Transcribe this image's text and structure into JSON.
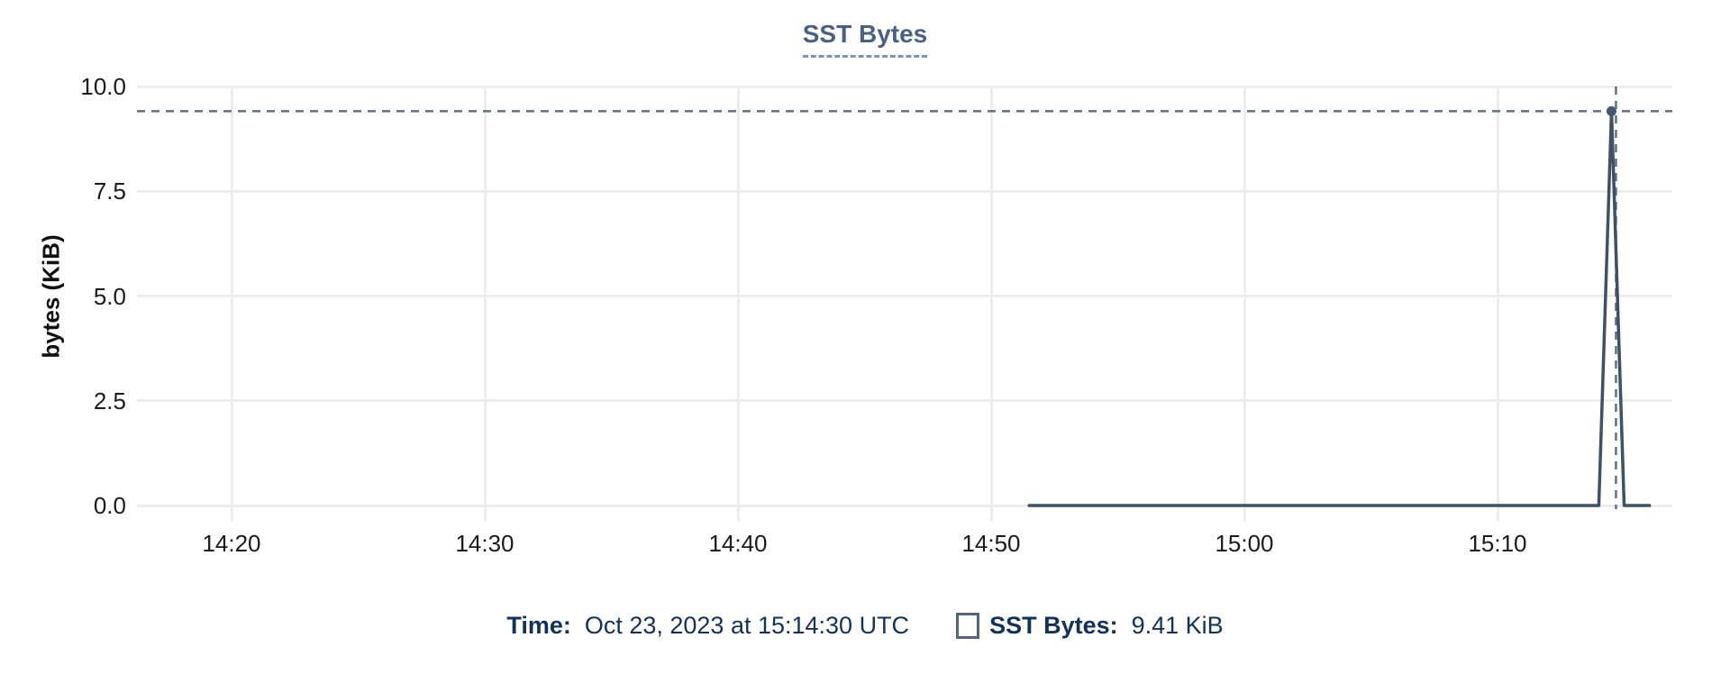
{
  "chart": {
    "title": "SST Bytes",
    "y_axis_label": "bytes (KiB)",
    "y_tick_labels": [
      "10.0",
      "7.5",
      "5.0",
      "2.5",
      "0.0"
    ],
    "x_tick_labels": [
      "14:20",
      "14:30",
      "14:40",
      "14:50",
      "15:00",
      "15:10"
    ]
  },
  "tooltip": {
    "time_label": "Time:",
    "time_value": "Oct 23, 2023 at 15:14:30 UTC",
    "series_label": "SST Bytes:",
    "series_value": "9.41 KiB"
  },
  "colors": {
    "title": "#4a6186",
    "line": "#3e5166",
    "marker": "#47596f",
    "crosshair": "#5d7187",
    "gridline": "#ededed",
    "tick_text": "#1b1b1b",
    "legend_text": "#14315c",
    "swatch_border": "#51657f"
  },
  "chart_data": {
    "type": "line",
    "title": "SST Bytes",
    "xlabel": "",
    "ylabel": "bytes (KiB)",
    "ylim": [
      0,
      10
    ],
    "y_ticks": [
      10,
      7.5,
      5,
      2.5,
      0
    ],
    "x_ticks": [
      "14:20",
      "14:30",
      "14:40",
      "14:50",
      "15:00",
      "15:10"
    ],
    "grid": true,
    "legend_position": "bottom",
    "series": [
      {
        "name": "SST Bytes",
        "unit": "KiB",
        "points": [
          [
            "14:51:30",
            0
          ],
          [
            "15:14:00",
            0
          ],
          [
            "15:14:30",
            9.41
          ],
          [
            "15:15:00",
            0
          ],
          [
            "15:16:00",
            0
          ]
        ]
      }
    ],
    "crosshair": {
      "time": "15:14:30",
      "value": 9.41,
      "date": "Oct 23, 2023",
      "tz": "UTC"
    }
  }
}
